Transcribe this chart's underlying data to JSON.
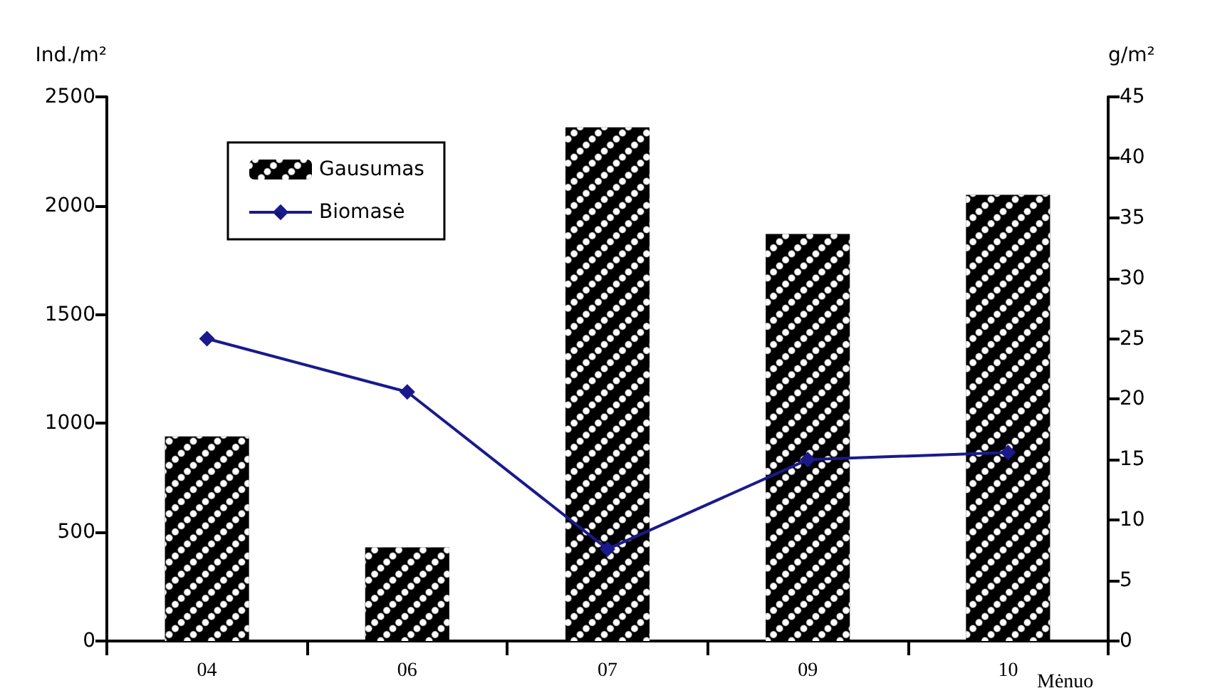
{
  "chart_data": {
    "type": "bar",
    "ylabel": "Ind./m²",
    "y2label": "g/m²",
    "xlabel": "Mėnuo",
    "categories": [
      "04",
      "06",
      "07",
      "09",
      "10"
    ],
    "series": [
      {
        "name": "Gausumas",
        "color": "#000000",
        "values": [
          940,
          430,
          2360,
          1870,
          2050
        ]
      },
      {
        "name": "Biomasė",
        "type": "line",
        "axis": "y2",
        "color": "#1a1a8c",
        "marker": "diamond",
        "values": [
          25,
          20.6,
          7.6,
          15,
          15.6
        ]
      }
    ],
    "ylim": [
      0,
      2500
    ],
    "yticks": [
      0,
      500,
      1000,
      1500,
      2000,
      2500
    ],
    "y2lim": [
      0,
      45
    ],
    "y2ticks": [
      0,
      5,
      10,
      15,
      20,
      25,
      30,
      35,
      40,
      45
    ],
    "grid": false,
    "legend": "top left"
  }
}
